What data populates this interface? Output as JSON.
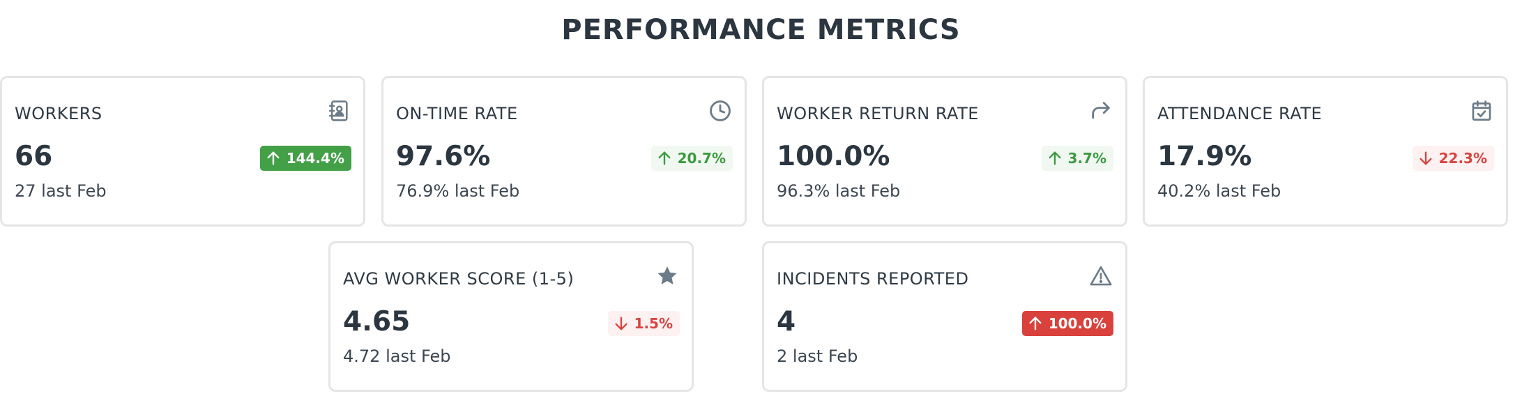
{
  "title": "PERFORMANCE METRICS",
  "colors": {
    "up_green": "#43a047",
    "down_red": "#d9413d",
    "icon_gray": "#6b7b88",
    "border": "#e3e5e7"
  },
  "cards": [
    {
      "label": "WORKERS",
      "value": "66",
      "previous": "27 last Feb",
      "icon": "contact-book-icon",
      "change": {
        "direction": "up",
        "text": "144.4%",
        "style": "solid-green"
      }
    },
    {
      "label": "ON-TIME RATE",
      "value": "97.6%",
      "previous": "76.9% last Feb",
      "icon": "clock-icon",
      "change": {
        "direction": "up",
        "text": "20.7%",
        "style": "soft-green"
      }
    },
    {
      "label": "WORKER RETURN RATE",
      "value": "100.0%",
      "previous": "96.3% last Feb",
      "icon": "share-forward-icon",
      "change": {
        "direction": "up",
        "text": "3.7%",
        "style": "soft-green"
      }
    },
    {
      "label": "ATTENDANCE RATE",
      "value": "17.9%",
      "previous": "40.2% last Feb",
      "icon": "calendar-check-icon",
      "change": {
        "direction": "down",
        "text": "22.3%",
        "style": "soft-red"
      }
    },
    {
      "label": "AVG WORKER SCORE (1-5)",
      "value": "4.65",
      "previous": "4.72 last Feb",
      "icon": "star-icon",
      "change": {
        "direction": "down",
        "text": "1.5%",
        "style": "soft-red"
      }
    },
    {
      "label": "INCIDENTS REPORTED",
      "value": "4",
      "previous": "2 last Feb",
      "icon": "warning-triangle-icon",
      "change": {
        "direction": "up",
        "text": "100.0%",
        "style": "solid-red"
      }
    }
  ]
}
